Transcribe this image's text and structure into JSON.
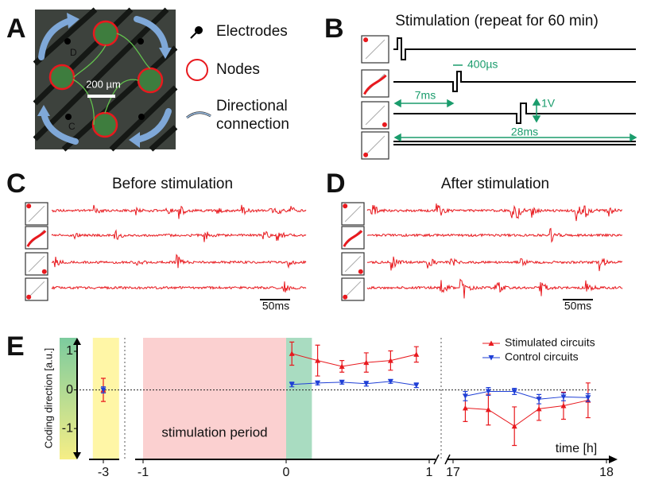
{
  "panel_a": {
    "label": "A",
    "scale_bar": "200 µm",
    "electrode_labels": [
      "D",
      "C"
    ],
    "legend": [
      "Electrodes",
      "Nodes",
      "Directional",
      "connection"
    ]
  },
  "panel_b": {
    "label": "B",
    "title": "Stimulation (repeat for 60 min)",
    "annotations": [
      "400µs",
      "7ms",
      "1V",
      "28ms"
    ]
  },
  "panel_c": {
    "label": "C",
    "title": "Before stimulation",
    "scale_bar": "50ms"
  },
  "panel_d": {
    "label": "D",
    "title": "After stimulation",
    "scale_bar": "50ms"
  },
  "chart_data": {
    "type": "line",
    "panel_label": "E",
    "y_label": "Coding direction [a.u.]",
    "x_label": "time [h]",
    "ylim": [
      -1.8,
      1.35
    ],
    "yticks": [
      -1,
      0,
      1
    ],
    "x_segments": [
      {
        "xlim": [
          -3.5,
          -2.5
        ],
        "xticks": [
          -3
        ]
      },
      {
        "xlim": [
          -1,
          1
        ],
        "xticks": [
          -1,
          0,
          1
        ]
      },
      {
        "xlim": [
          17,
          18
        ],
        "xticks": [
          17,
          18
        ]
      }
    ],
    "reference_line": 0,
    "colorbar_colors": [
      "#7ccb9e",
      "#f6ee86"
    ],
    "regions": [
      {
        "x": [
          -3.22,
          -2.67
        ],
        "color": "#fff6a6"
      },
      {
        "x": [
          -1,
          0
        ],
        "color": "#fbd0d0",
        "label": "stimulation period"
      },
      {
        "x": [
          0,
          0.18
        ],
        "color": "#a9dcc1"
      }
    ],
    "legend_position": "upper right",
    "series": [
      {
        "name": "Stimulated circuits",
        "color": "#e8191e",
        "marker": "triangle-up",
        "x": [
          -3,
          0.04,
          0.22,
          0.39,
          0.56,
          0.73,
          0.91,
          17.08,
          17.23,
          17.4,
          17.56,
          17.72,
          17.88
        ],
        "values": [
          0,
          0.94,
          0.76,
          0.61,
          0.71,
          0.76,
          0.92,
          -0.47,
          -0.51,
          -0.94,
          -0.49,
          -0.41,
          -0.27
        ],
        "errors": [
          0.3,
          0.3,
          0.4,
          0.15,
          0.25,
          0.25,
          0.2,
          0.35,
          0.4,
          0.5,
          0.3,
          0.35,
          0.45
        ]
      },
      {
        "name": "Control circuits",
        "color": "#1f3fd6",
        "marker": "triangle-down",
        "x": [
          -3,
          0.04,
          0.22,
          0.39,
          0.56,
          0.73,
          0.91,
          17.08,
          17.23,
          17.4,
          17.56,
          17.72,
          17.88
        ],
        "values": [
          0,
          0.14,
          0.18,
          0.2,
          0.16,
          0.22,
          0.12,
          -0.16,
          -0.04,
          -0.04,
          -0.24,
          -0.18,
          -0.2
        ],
        "errors": [
          0.08,
          0.06,
          0.05,
          0.05,
          0.06,
          0.05,
          0.06,
          0.12,
          0.1,
          0.08,
          0.12,
          0.1,
          0.1
        ]
      }
    ]
  }
}
